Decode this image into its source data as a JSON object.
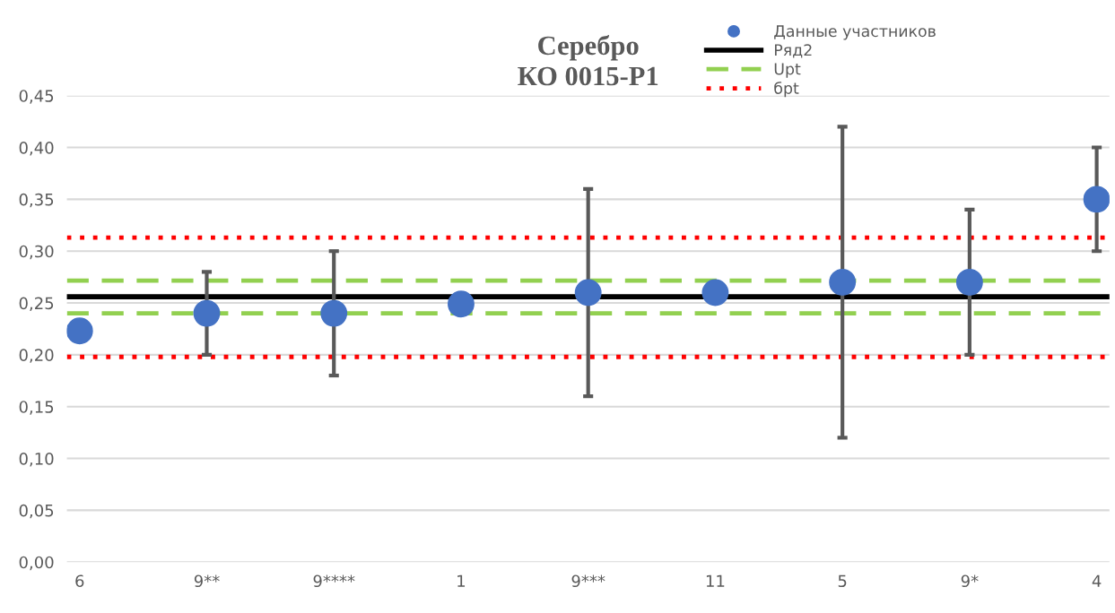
{
  "chart_data": {
    "type": "scatter",
    "title": "Серебро\nКО 0015-Р1",
    "categories": [
      "6",
      "9**",
      "9****",
      "1",
      "9***",
      "11",
      "5",
      "9*",
      "4"
    ],
    "series": [
      {
        "name": "Данные участников",
        "color": "#4472c4",
        "values": [
          0.223,
          0.24,
          0.24,
          0.249,
          0.26,
          0.26,
          0.27,
          0.27,
          0.35
        ],
        "errors": [
          null,
          [
            0.2,
            0.28
          ],
          [
            0.18,
            0.3
          ],
          null,
          [
            0.16,
            0.36
          ],
          null,
          [
            0.12,
            0.42
          ],
          [
            0.2,
            0.34
          ],
          [
            0.3,
            0.4
          ]
        ]
      }
    ],
    "ref_lines": [
      {
        "axis": "y",
        "value": 0.256,
        "label": "Ряд2",
        "color": "#000000",
        "line_style": "solid"
      },
      {
        "axis": "y",
        "value": 0.2715,
        "label": "Upt",
        "color": "#92d050",
        "line_style": "dashed"
      },
      {
        "axis": "y",
        "value": 0.24,
        "label": null,
        "color": "#92d050",
        "line_style": "dashed"
      },
      {
        "axis": "y",
        "value": 0.313,
        "label": "бpt",
        "color": "#ff0000",
        "line_style": "dotted"
      },
      {
        "axis": "y",
        "value": 0.198,
        "label": null,
        "color": "#ff0000",
        "line_style": "dotted"
      }
    ],
    "ylim": [
      0,
      0.45
    ],
    "yticks": [
      {
        "value": 0,
        "label": "0,00"
      },
      {
        "value": 0.05,
        "label": "0,05"
      },
      {
        "value": 0.1,
        "label": "0,10"
      },
      {
        "value": 0.15,
        "label": "0,15"
      },
      {
        "value": 0.2,
        "label": "0,20"
      },
      {
        "value": 0.25,
        "label": "0,25"
      },
      {
        "value": 0.3,
        "label": "0,30"
      },
      {
        "value": 0.35,
        "label": "0,35"
      },
      {
        "value": 0.4,
        "label": "0,40"
      },
      {
        "value": 0.45,
        "label": "0,45"
      }
    ],
    "grid": "y",
    "legend": "top right",
    "marker": "circle"
  }
}
